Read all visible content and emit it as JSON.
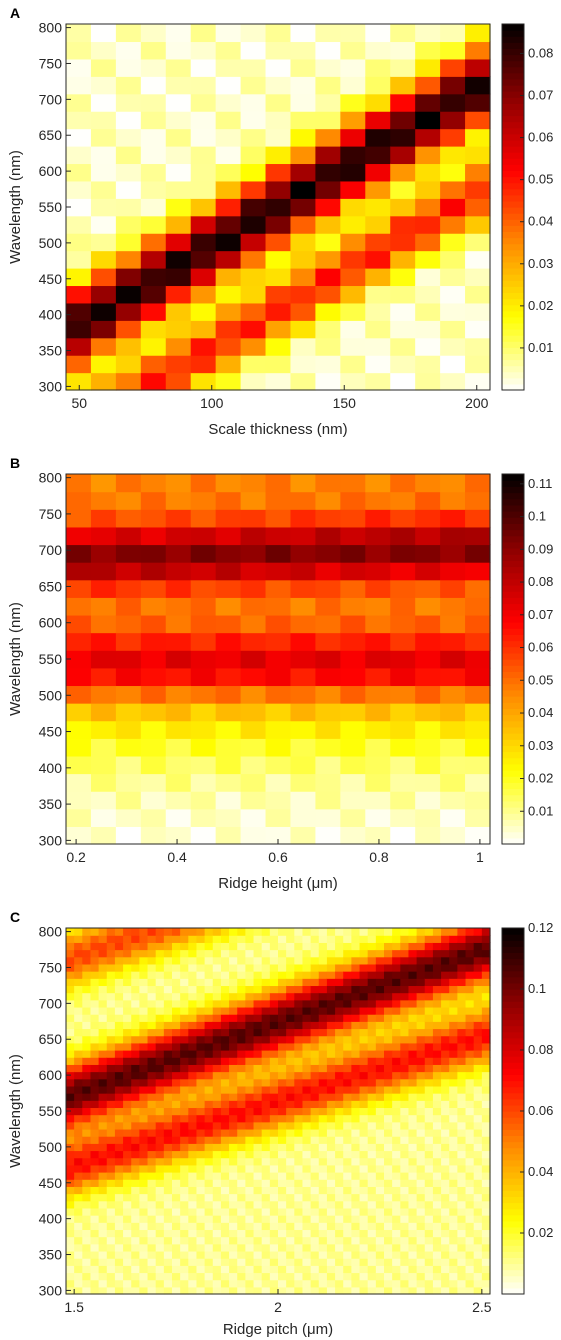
{
  "figure": {
    "colormap": "hot-reversed",
    "colors": [
      "#000000",
      "#8b0000",
      "#ff0000",
      "#ff8c00",
      "#ffff00",
      "#ffffff"
    ]
  },
  "chart_data": [
    {
      "panel_label": "A",
      "type": "heatmap",
      "xlabel": "Scale thickness (nm)",
      "ylabel": "Wavelength (nm)",
      "xlim": [
        45,
        205
      ],
      "ylim": [
        295,
        805
      ],
      "xticks": [
        50,
        100,
        150,
        200
      ],
      "yticks": [
        300,
        350,
        400,
        450,
        500,
        550,
        600,
        650,
        700,
        750,
        800
      ],
      "grid": {
        "nx": 17,
        "ny": 21
      },
      "colorbar": {
        "min": 0,
        "max": 0.087,
        "ticks": [
          0.01,
          0.02,
          0.03,
          0.04,
          0.05,
          0.06,
          0.07,
          0.08
        ]
      },
      "bands": [
        {
          "amp": 0.08,
          "intercept": 375,
          "slope": 2.2,
          "width": 55
        },
        {
          "amp": 0.045,
          "intercept": 235,
          "slope": 2.15,
          "width": 45
        }
      ],
      "base": 0.004
    },
    {
      "panel_label": "B",
      "type": "heatmap",
      "xlabel": "Ridge height (μm)",
      "ylabel": "Wavelength (nm)",
      "xlim": [
        0.18,
        1.02
      ],
      "ylim": [
        295,
        805
      ],
      "xticks": [
        0.2,
        0.4,
        0.6,
        0.8,
        1
      ],
      "yticks": [
        300,
        350,
        400,
        450,
        500,
        550,
        600,
        650,
        700,
        750,
        800
      ],
      "grid": {
        "nx": 17,
        "ny": 21
      },
      "colorbar": {
        "min": 0,
        "max": 0.113,
        "ticks": [
          0.01,
          0.02,
          0.03,
          0.04,
          0.05,
          0.06,
          0.07,
          0.08,
          0.09,
          0.1,
          0.11
        ]
      },
      "bands": [
        {
          "amp": 0.045,
          "intercept": 690,
          "slope": 15,
          "width": 40
        },
        {
          "amp": 0.035,
          "intercept": 540,
          "slope": 0,
          "width": 45
        }
      ],
      "base": 0.045,
      "edge": {
        "center": 450,
        "width": 45
      }
    },
    {
      "panel_label": "C",
      "type": "heatmap",
      "xlabel": "Ridge pitch (μm)",
      "ylabel": "Wavelength (nm)",
      "xlim": [
        1.48,
        2.52
      ],
      "ylim": [
        295,
        805
      ],
      "xticks": [
        1.5,
        2,
        2.5
      ],
      "yticks": [
        300,
        350,
        400,
        450,
        500,
        550,
        600,
        650,
        700,
        750,
        800
      ],
      "grid": {
        "nx": 52,
        "ny": 51
      },
      "colorbar": {
        "min": 0,
        "max": 0.12,
        "ticks": [
          0.02,
          0.04,
          0.06,
          0.08,
          0.1,
          0.12
        ]
      },
      "bands": [
        {
          "amp": 0.095,
          "intercept": 570,
          "slope": 200,
          "width": 45
        },
        {
          "amp": 0.06,
          "intercept": 470,
          "slope": 180,
          "width": 40
        },
        {
          "amp": 0.05,
          "intercept": 760,
          "slope": 200,
          "width": 40
        }
      ],
      "base": 0.01
    }
  ]
}
